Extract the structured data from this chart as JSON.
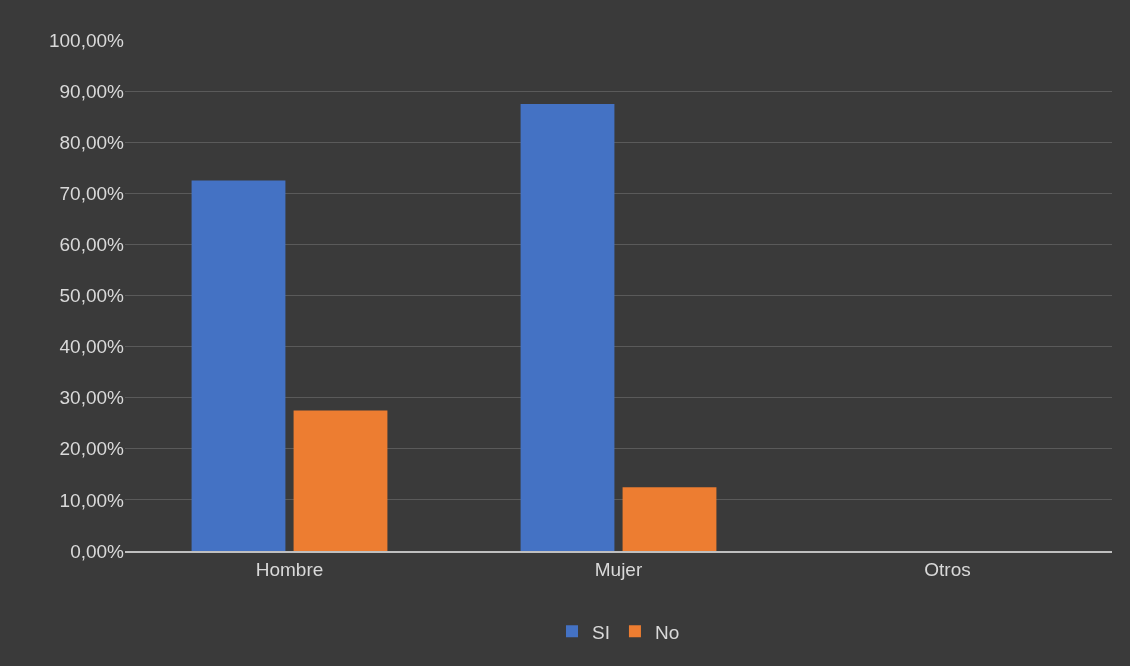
{
  "chart_data": {
    "type": "bar",
    "categories": [
      "Hombre",
      "Mujer",
      "Otros"
    ],
    "series": [
      {
        "name": "SI",
        "color": "#4472c4",
        "values": [
          72.5,
          87.5,
          0
        ]
      },
      {
        "name": "No",
        "color": "#ed7d31",
        "values": [
          27.5,
          12.5,
          0
        ]
      }
    ],
    "ylim": [
      0,
      100
    ],
    "yticks": [
      {
        "value": 0,
        "label": "0,00%"
      },
      {
        "value": 10,
        "label": "10,00%"
      },
      {
        "value": 20,
        "label": "20,00%"
      },
      {
        "value": 30,
        "label": "30,00%"
      },
      {
        "value": 40,
        "label": "40,00%"
      },
      {
        "value": 50,
        "label": "50,00%"
      },
      {
        "value": 60,
        "label": "60,00%"
      },
      {
        "value": 70,
        "label": "70,00%"
      },
      {
        "value": 80,
        "label": "80,00%"
      },
      {
        "value": 90,
        "label": "90,00%"
      },
      {
        "value": 100,
        "label": "100,00%"
      }
    ],
    "grid": "y",
    "legend": "bottom"
  }
}
